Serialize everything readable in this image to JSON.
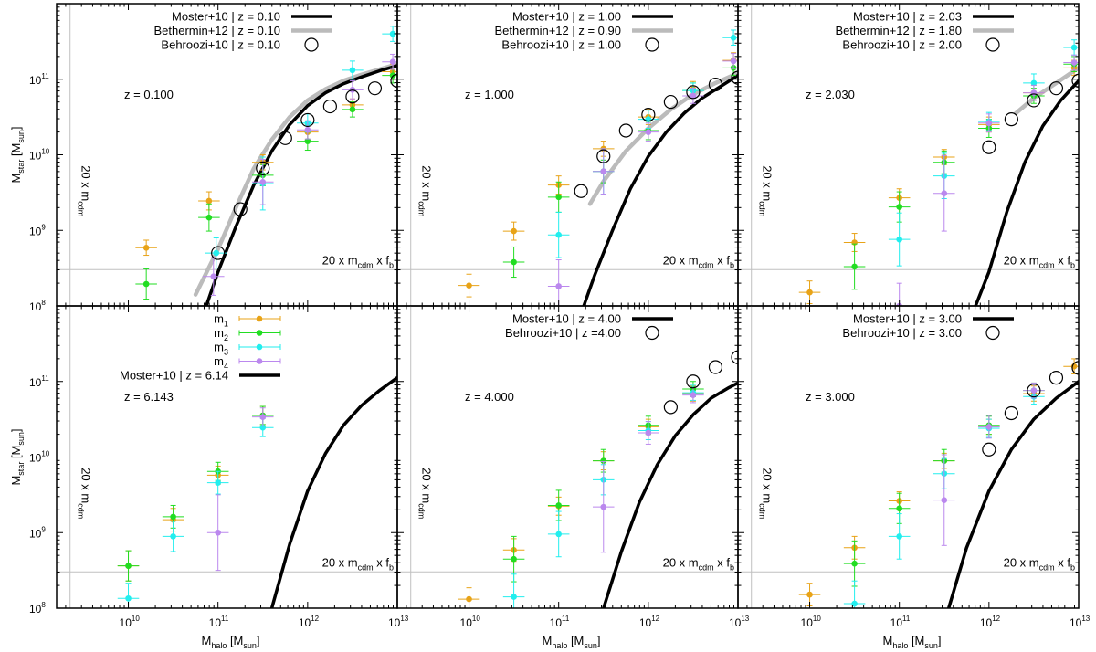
{
  "figure": {
    "ylabel_main": "M",
    "ylabel_sub": "star",
    "ylabel_unit_open": " [M",
    "ylabel_unit_sub": "sun",
    "ylabel_unit_close": "]",
    "xlabel_main": "M",
    "xlabel_sub": "halo",
    "xlabel_unit_open": " [M",
    "xlabel_unit_sub": "sun",
    "xlabel_unit_close": "]",
    "hline_label": {
      "prefix": "20 x m",
      "sub1": "cdm",
      "mid": " x f",
      "sub2": "b"
    },
    "vline_label": {
      "prefix": "20 x m",
      "sub": "cdm"
    },
    "y_ticks": [
      8,
      9,
      10,
      11
    ],
    "x_ticks": [
      10,
      11,
      12,
      13
    ],
    "tick_base": "10"
  },
  "colors": {
    "m1": "#e8a317",
    "m2": "#22dd22",
    "m3": "#22eeee",
    "m4": "#bb88ee",
    "moster": "#000000",
    "bethermin": "#bbbbbb",
    "refline": "#c0c0c0"
  },
  "chart_data": [
    {
      "type": "scatter",
      "panel": "top-left",
      "annotation": "z = 0.100",
      "xlim": [
        9.2,
        13.0
      ],
      "ylim": [
        8.0,
        12.0
      ],
      "legend": [
        {
          "series": "moster",
          "label": "Moster+10 | z = 0.10"
        },
        {
          "series": "bethermin",
          "label": "Bethermin+12 | z = 0.10"
        },
        {
          "series": "behroozi",
          "label": "Behroozi+10 | z = 0.10"
        }
      ],
      "moster": {
        "x": [
          10.87,
          11.0,
          11.2,
          11.4,
          11.6,
          11.8,
          12.0,
          12.2,
          12.4,
          12.6,
          12.8,
          13.0
        ],
        "y": [
          8.0,
          8.45,
          9.05,
          9.6,
          10.05,
          10.4,
          10.65,
          10.82,
          10.94,
          11.03,
          11.11,
          11.18
        ]
      },
      "bethermin": {
        "x": [
          10.75,
          11.0,
          11.2,
          11.4,
          11.6,
          11.8,
          12.0,
          12.2,
          12.4,
          12.6,
          12.8,
          13.0
        ],
        "y": [
          8.15,
          8.75,
          9.3,
          9.82,
          10.2,
          10.5,
          10.72,
          10.87,
          10.98,
          11.06,
          11.13,
          11.2
        ]
      },
      "behroozi": {
        "x": [
          11.0,
          11.25,
          11.5,
          11.75,
          12.0,
          12.25,
          12.5,
          12.75,
          13.0
        ],
        "y": [
          8.7,
          9.28,
          9.82,
          10.22,
          10.46,
          10.64,
          10.77,
          10.88,
          10.98
        ]
      },
      "points": [
        {
          "series": "m1",
          "x": [
            10.2,
            10.9,
            11.5,
            12.0,
            12.5,
            12.95
          ],
          "y": [
            8.77,
            9.39,
            9.9,
            10.3,
            10.66,
            11.1
          ],
          "xerr": 0.12,
          "yerr": [
            0.1,
            0.12,
            0.1,
            0.1,
            0.08,
            0.1
          ]
        },
        {
          "series": "m2",
          "x": [
            10.2,
            10.9,
            11.5,
            12.0,
            12.5,
            12.95
          ],
          "y": [
            8.29,
            9.17,
            9.73,
            10.18,
            10.6,
            11.05
          ],
          "xerr": 0.12,
          "yerr": [
            0.2,
            0.18,
            0.14,
            0.12,
            0.1,
            0.1
          ]
        },
        {
          "series": "m3",
          "x": [
            10.98,
            11.5,
            12.0,
            12.5,
            12.95
          ],
          "y": [
            8.7,
            9.62,
            10.42,
            11.12,
            11.6
          ],
          "xerr": 0.12,
          "yerr": [
            0.2,
            0.35,
            0.12,
            0.12,
            0.1
          ]
        },
        {
          "series": "m4",
          "x": [
            10.95,
            11.5,
            12.0,
            12.5,
            12.95
          ],
          "y": [
            8.39,
            9.64,
            10.33,
            10.86,
            11.23
          ],
          "xerr": 0.12,
          "yerr": [
            0.25,
            0.3,
            0.12,
            0.12,
            0.1
          ]
        }
      ]
    },
    {
      "type": "scatter",
      "panel": "top-middle",
      "annotation": "z = 1.000",
      "xlim": [
        9.2,
        13.0
      ],
      "ylim": [
        8.0,
        12.0
      ],
      "legend": [
        {
          "series": "moster",
          "label": "Moster+10 | z = 1.00"
        },
        {
          "series": "bethermin",
          "label": "Bethermin+12 | z = 0.90"
        },
        {
          "series": "behroozi",
          "label": "Behroozi+10 | z = 1.00"
        }
      ],
      "moster": {
        "x": [
          11.28,
          11.4,
          11.6,
          11.8,
          12.0,
          12.2,
          12.4,
          12.6,
          12.8,
          13.0
        ],
        "y": [
          8.0,
          8.4,
          9.0,
          9.55,
          9.98,
          10.3,
          10.55,
          10.75,
          10.9,
          11.05
        ]
      },
      "bethermin": {
        "x": [
          11.35,
          11.5,
          11.75,
          12.0,
          12.25,
          12.5,
          12.75,
          13.0
        ],
        "y": [
          9.35,
          9.65,
          10.05,
          10.35,
          10.6,
          10.8,
          10.95,
          11.08
        ]
      },
      "behroozi": {
        "x": [
          11.25,
          11.5,
          11.75,
          12.0,
          12.25,
          12.5,
          12.75,
          13.0
        ],
        "y": [
          9.52,
          9.98,
          10.32,
          10.53,
          10.7,
          10.83,
          10.93,
          11.02
        ]
      },
      "points": [
        {
          "series": "m1",
          "x": [
            10.0,
            10.5,
            11.0,
            11.5,
            12.0,
            12.5,
            12.95
          ],
          "y": [
            8.27,
            8.99,
            9.6,
            10.08,
            10.5,
            10.87,
            11.25
          ],
          "xerr": 0.12,
          "yerr": [
            0.15,
            0.12,
            0.12,
            0.1,
            0.1,
            0.1,
            0.1
          ]
        },
        {
          "series": "m2",
          "x": [
            10.5,
            11.0,
            11.5,
            12.0,
            12.5,
            12.95
          ],
          "y": [
            8.58,
            9.44,
            9.78,
            10.32,
            10.85,
            11.15
          ],
          "xerr": 0.12,
          "yerr": [
            0.2,
            0.2,
            0.15,
            0.12,
            0.1,
            0.1
          ]
        },
        {
          "series": "m3",
          "x": [
            11.0,
            11.5,
            12.0,
            12.5,
            12.95
          ],
          "y": [
            8.94,
            9.78,
            10.47,
            10.85,
            11.55
          ],
          "xerr": 0.12,
          "yerr": [
            0.3,
            0.3,
            0.12,
            0.1,
            0.1
          ]
        },
        {
          "series": "m4",
          "x": [
            11.0,
            11.5,
            12.0,
            12.5,
            12.95
          ],
          "y": [
            8.26,
            9.78,
            10.3,
            10.78,
            11.24
          ],
          "xerr": 0.12,
          "yerr": [
            0.35,
            0.3,
            0.12,
            0.1,
            0.1
          ]
        }
      ]
    },
    {
      "type": "scatter",
      "panel": "top-right",
      "annotation": "z = 2.030",
      "xlim": [
        9.2,
        13.0
      ],
      "ylim": [
        8.0,
        12.0
      ],
      "legend": [
        {
          "series": "moster",
          "label": "Moster+10 | z = 2.03"
        },
        {
          "series": "bethermin",
          "label": "Bethermin+12 | z = 1.80"
        },
        {
          "series": "behroozi",
          "label": "Behroozi+10 | z = 2.00"
        }
      ],
      "moster": {
        "x": [
          11.85,
          12.0,
          12.2,
          12.4,
          12.6,
          12.8,
          13.0
        ],
        "y": [
          8.0,
          8.45,
          9.25,
          9.9,
          10.38,
          10.72,
          10.98
        ]
      },
      "bethermin": {
        "x": [
          12.3,
          12.5,
          12.75,
          13.0
        ],
        "y": [
          10.55,
          10.75,
          10.95,
          11.15
        ]
      },
      "behroozi": {
        "x": [
          12.0,
          12.25,
          12.5,
          12.75,
          13.0
        ],
        "y": [
          10.1,
          10.47,
          10.72,
          10.88,
          10.98
        ]
      },
      "points": [
        {
          "series": "m1",
          "x": [
            10.0,
            10.5,
            11.0,
            11.5,
            12.0,
            12.5,
            12.95
          ],
          "y": [
            8.18,
            8.84,
            9.43,
            9.97,
            10.4,
            10.82,
            11.15
          ],
          "xerr": 0.12,
          "yerr": [
            0.15,
            0.12,
            0.12,
            0.1,
            0.1,
            0.1,
            0.1
          ]
        },
        {
          "series": "m2",
          "x": [
            10.5,
            11.0,
            11.5,
            12.0,
            12.5,
            12.95
          ],
          "y": [
            8.52,
            9.31,
            9.9,
            10.35,
            10.78,
            11.2
          ],
          "xerr": 0.12,
          "yerr": [
            0.3,
            0.2,
            0.15,
            0.12,
            0.1,
            0.1
          ]
        },
        {
          "series": "m3",
          "x": [
            11.0,
            11.5,
            12.0,
            12.5,
            12.95
          ],
          "y": [
            8.88,
            9.72,
            10.44,
            10.95,
            11.42
          ],
          "xerr": 0.12,
          "yerr": [
            0.35,
            0.3,
            0.12,
            0.12,
            0.1
          ]
        },
        {
          "series": "m4",
          "x": [
            11.0,
            11.5,
            12.0,
            12.5,
            12.95
          ],
          "y": [
            8.0,
            9.49,
            10.42,
            10.82,
            11.22
          ],
          "xerr": 0.12,
          "yerr": [
            0.3,
            0.5,
            0.12,
            0.1,
            0.1
          ]
        }
      ]
    },
    {
      "type": "scatter",
      "panel": "bottom-left",
      "annotation": "z = 6.143",
      "xlim": [
        9.2,
        13.0
      ],
      "ylim": [
        8.0,
        12.0
      ],
      "legend": [
        {
          "series": "m1",
          "label": "m",
          "sub": "1"
        },
        {
          "series": "m2",
          "label": "m",
          "sub": "2"
        },
        {
          "series": "m3",
          "label": "m",
          "sub": "3"
        },
        {
          "series": "m4",
          "label": "m",
          "sub": "4"
        },
        {
          "series": "moster",
          "label": "Moster+10 | z = 6.14"
        }
      ],
      "moster": {
        "x": [
          11.6,
          11.8,
          12.0,
          12.2,
          12.4,
          12.6,
          12.8,
          13.0
        ],
        "y": [
          8.0,
          8.85,
          9.55,
          10.05,
          10.42,
          10.68,
          10.88,
          11.05
        ]
      },
      "behroozi": null,
      "points": [
        {
          "series": "m1",
          "x": [
            10.0,
            10.5,
            11.0,
            11.5
          ],
          "y": [
            8.56,
            9.17,
            9.76,
            10.55
          ],
          "xerr": 0.12,
          "yerr": [
            0.2,
            0.15,
            0.12,
            0.12
          ]
        },
        {
          "series": "m2",
          "x": [
            10.0,
            10.5,
            11.0,
            11.5
          ],
          "y": [
            8.56,
            9.21,
            9.81,
            10.55
          ],
          "xerr": 0.12,
          "yerr": [
            0.2,
            0.15,
            0.12,
            0.12
          ]
        },
        {
          "series": "m3",
          "x": [
            10.0,
            10.5,
            11.0,
            11.5
          ],
          "y": [
            8.13,
            8.95,
            9.66,
            10.39
          ],
          "xerr": 0.12,
          "yerr": [
            0.2,
            0.2,
            0.15,
            0.12
          ]
        },
        {
          "series": "m4",
          "x": [
            11.0,
            11.5
          ],
          "y": [
            9.0,
            10.53
          ],
          "xerr": 0.12,
          "yerr": [
            0.5,
            0.12
          ]
        }
      ]
    },
    {
      "type": "scatter",
      "panel": "bottom-middle",
      "annotation": "z = 4.000",
      "xlim": [
        9.2,
        13.0
      ],
      "ylim": [
        8.0,
        12.0
      ],
      "legend": [
        {
          "series": "moster",
          "label": "Moster+10 | z = 4.00"
        },
        {
          "series": "behroozi",
          "label": "Behroozi+10 | z =4.00"
        }
      ],
      "moster": {
        "x": [
          11.5,
          11.7,
          11.9,
          12.1,
          12.3,
          12.5,
          12.7,
          12.9,
          13.0
        ],
        "y": [
          8.0,
          8.75,
          9.4,
          9.9,
          10.28,
          10.56,
          10.78,
          10.92,
          10.98
        ]
      },
      "behroozi": {
        "x": [
          12.25,
          12.5,
          12.75,
          13.0
        ],
        "y": [
          10.66,
          11.0,
          11.19,
          11.32
        ]
      },
      "points": [
        {
          "series": "m1",
          "x": [
            10.0,
            10.5,
            11.0,
            11.5,
            12.0,
            12.5
          ],
          "y": [
            8.12,
            8.77,
            9.35,
            9.95,
            10.4,
            10.84
          ],
          "xerr": 0.12,
          "yerr": [
            0.15,
            0.15,
            0.12,
            0.12,
            0.1,
            0.1
          ]
        },
        {
          "series": "m2",
          "x": [
            10.5,
            11.0,
            11.5,
            12.0,
            12.5
          ],
          "y": [
            8.65,
            9.36,
            9.95,
            10.42,
            10.9
          ],
          "xerr": 0.12,
          "yerr": [
            0.3,
            0.2,
            0.15,
            0.12,
            0.1
          ]
        },
        {
          "series": "m3",
          "x": [
            10.5,
            11.0,
            11.5,
            12.0,
            12.5
          ],
          "y": [
            8.15,
            8.98,
            9.7,
            10.35,
            10.85
          ],
          "xerr": 0.12,
          "yerr": [
            0.3,
            0.3,
            0.2,
            0.12,
            0.1
          ]
        },
        {
          "series": "m4",
          "x": [
            11.5,
            12.0,
            12.5
          ],
          "y": [
            9.34,
            10.32,
            10.82
          ],
          "xerr": 0.12,
          "yerr": [
            0.6,
            0.15,
            0.1
          ]
        }
      ]
    },
    {
      "type": "scatter",
      "panel": "bottom-right",
      "annotation": "z = 3.000",
      "xlim": [
        9.2,
        13.0
      ],
      "ylim": [
        8.0,
        12.0
      ],
      "legend": [
        {
          "series": "moster",
          "label": "Moster+10 | z = 3.00"
        },
        {
          "series": "behroozi",
          "label": "Behroozi+10 | z = 3.00"
        }
      ],
      "moster": {
        "x": [
          11.55,
          11.75,
          12.0,
          12.25,
          12.5,
          12.75,
          13.0
        ],
        "y": [
          8.0,
          8.8,
          9.55,
          10.1,
          10.5,
          10.78,
          11.0
        ]
      },
      "behroozi": {
        "x": [
          12.0,
          12.25,
          12.5,
          12.75,
          13.0
        ],
        "y": [
          10.1,
          10.58,
          10.88,
          11.05,
          11.18
        ]
      },
      "points": [
        {
          "series": "m1",
          "x": [
            10.0,
            10.5,
            11.0,
            11.5,
            12.0,
            12.5,
            12.95
          ],
          "y": [
            8.18,
            8.8,
            9.42,
            9.95,
            10.4,
            10.84,
            11.2
          ],
          "xerr": 0.12,
          "yerr": [
            0.15,
            0.15,
            0.12,
            0.1,
            0.1,
            0.1,
            0.1
          ]
        },
        {
          "series": "m2",
          "x": [
            10.5,
            11.0,
            11.5,
            12.0,
            12.5
          ],
          "y": [
            8.59,
            9.32,
            9.95,
            10.42,
            10.88
          ],
          "xerr": 0.12,
          "yerr": [
            0.3,
            0.2,
            0.15,
            0.12,
            0.1
          ]
        },
        {
          "series": "m3",
          "x": [
            10.5,
            11.0,
            11.5,
            12.0,
            12.5
          ],
          "y": [
            8.06,
            8.95,
            9.78,
            10.38,
            10.8
          ],
          "xerr": 0.12,
          "yerr": [
            0.3,
            0.3,
            0.2,
            0.12,
            0.1
          ]
        },
        {
          "series": "m4",
          "x": [
            11.5,
            12.0,
            12.5
          ],
          "y": [
            9.43,
            10.4,
            10.88
          ],
          "xerr": 0.12,
          "yerr": [
            0.6,
            0.15,
            0.1
          ]
        }
      ]
    }
  ]
}
